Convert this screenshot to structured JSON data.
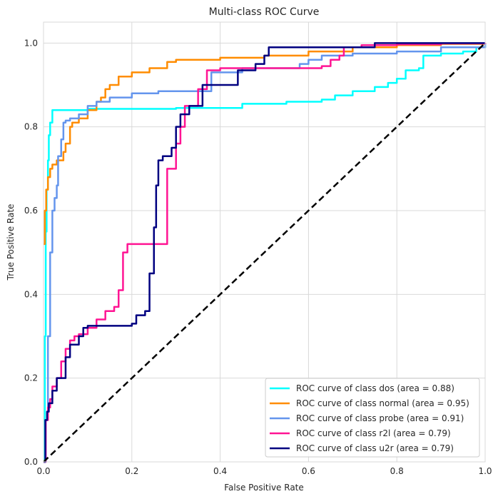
{
  "chart_data": {
    "type": "line",
    "title": "Multi-class ROC Curve",
    "xlabel": "False Positive Rate",
    "ylabel": "True Positive Rate",
    "xlim": [
      0.0,
      1.0
    ],
    "ylim": [
      0.0,
      1.05
    ],
    "xticks": [
      "0.0",
      "0.2",
      "0.4",
      "0.6",
      "0.8",
      "1.0"
    ],
    "yticks": [
      "0.0",
      "0.2",
      "0.4",
      "0.6",
      "0.8",
      "1.0"
    ],
    "grid": true,
    "legend_position": "lower-right",
    "series": [
      {
        "name": "ROC curve of class dos (area = 0.88)",
        "color": "#00ffff",
        "x": [
          0.0,
          0.003,
          0.005,
          0.007,
          0.01,
          0.012,
          0.015,
          0.02,
          0.1,
          0.3,
          0.45,
          0.55,
          0.63,
          0.66,
          0.7,
          0.75,
          0.78,
          0.8,
          0.82,
          0.85,
          0.86,
          0.9,
          0.95,
          0.98,
          1.0
        ],
        "y": [
          0.0,
          0.3,
          0.55,
          0.65,
          0.72,
          0.78,
          0.81,
          0.84,
          0.843,
          0.845,
          0.855,
          0.86,
          0.865,
          0.875,
          0.885,
          0.895,
          0.905,
          0.915,
          0.935,
          0.94,
          0.97,
          0.975,
          0.98,
          0.99,
          1.0
        ]
      },
      {
        "name": "ROC curve of class normal (area = 0.95)",
        "color": "#ff8c00",
        "x": [
          0.0,
          0.003,
          0.006,
          0.01,
          0.015,
          0.02,
          0.03,
          0.045,
          0.05,
          0.06,
          0.065,
          0.08,
          0.1,
          0.12,
          0.13,
          0.14,
          0.15,
          0.17,
          0.2,
          0.24,
          0.28,
          0.3,
          0.4,
          0.5,
          0.6,
          0.7,
          0.8,
          0.9,
          1.0
        ],
        "y": [
          0.52,
          0.6,
          0.65,
          0.68,
          0.7,
          0.71,
          0.72,
          0.74,
          0.76,
          0.8,
          0.81,
          0.82,
          0.84,
          0.86,
          0.87,
          0.89,
          0.9,
          0.92,
          0.93,
          0.94,
          0.955,
          0.96,
          0.965,
          0.97,
          0.98,
          0.99,
          0.995,
          0.998,
          1.0
        ]
      },
      {
        "name": "ROC curve of class probe (area = 0.91)",
        "color": "#6495ed",
        "x": [
          0.0,
          0.005,
          0.01,
          0.015,
          0.02,
          0.025,
          0.03,
          0.033,
          0.04,
          0.045,
          0.05,
          0.06,
          0.08,
          0.1,
          0.12,
          0.15,
          0.2,
          0.26,
          0.33,
          0.375,
          0.38,
          0.45,
          0.58,
          0.6,
          0.63,
          0.7,
          0.8,
          0.9,
          1.0
        ],
        "y": [
          0.0,
          0.1,
          0.3,
          0.5,
          0.6,
          0.63,
          0.66,
          0.73,
          0.77,
          0.81,
          0.815,
          0.82,
          0.83,
          0.85,
          0.86,
          0.87,
          0.88,
          0.885,
          0.885,
          0.885,
          0.93,
          0.94,
          0.95,
          0.96,
          0.97,
          0.975,
          0.98,
          0.99,
          1.0
        ]
      },
      {
        "name": "ROC curve of class r2l (area = 0.79)",
        "color": "#ff1493",
        "x": [
          0.0,
          0.005,
          0.01,
          0.015,
          0.02,
          0.03,
          0.04,
          0.05,
          0.06,
          0.07,
          0.08,
          0.1,
          0.12,
          0.14,
          0.16,
          0.17,
          0.18,
          0.19,
          0.25,
          0.28,
          0.3,
          0.31,
          0.32,
          0.35,
          0.37,
          0.4,
          0.5,
          0.63,
          0.65,
          0.67,
          0.68,
          0.72,
          0.8,
          0.9,
          1.0
        ],
        "y": [
          0.0,
          0.1,
          0.13,
          0.15,
          0.18,
          0.2,
          0.24,
          0.27,
          0.29,
          0.3,
          0.305,
          0.32,
          0.34,
          0.36,
          0.37,
          0.41,
          0.5,
          0.52,
          0.52,
          0.7,
          0.76,
          0.8,
          0.85,
          0.89,
          0.935,
          0.94,
          0.94,
          0.945,
          0.96,
          0.97,
          0.99,
          0.995,
          0.997,
          0.999,
          1.0
        ]
      },
      {
        "name": "ROC curve of class u2r (area = 0.79)",
        "color": "#000080",
        "x": [
          0.0,
          0.004,
          0.008,
          0.012,
          0.02,
          0.03,
          0.05,
          0.06,
          0.08,
          0.09,
          0.1,
          0.15,
          0.19,
          0.2,
          0.21,
          0.23,
          0.24,
          0.25,
          0.255,
          0.26,
          0.27,
          0.29,
          0.3,
          0.31,
          0.33,
          0.36,
          0.44,
          0.48,
          0.5,
          0.51,
          0.6,
          0.74,
          0.75,
          0.8,
          1.0
        ],
        "y": [
          0.0,
          0.1,
          0.12,
          0.14,
          0.17,
          0.2,
          0.25,
          0.28,
          0.3,
          0.32,
          0.325,
          0.325,
          0.325,
          0.33,
          0.35,
          0.36,
          0.45,
          0.56,
          0.66,
          0.72,
          0.73,
          0.75,
          0.8,
          0.83,
          0.85,
          0.9,
          0.935,
          0.95,
          0.97,
          0.99,
          0.99,
          0.99,
          1.0,
          1.0,
          1.0
        ]
      },
      {
        "name": "",
        "color": "#000000",
        "dashed": true,
        "x": [
          0.0,
          1.0
        ],
        "y": [
          0.0,
          1.0
        ]
      }
    ]
  }
}
